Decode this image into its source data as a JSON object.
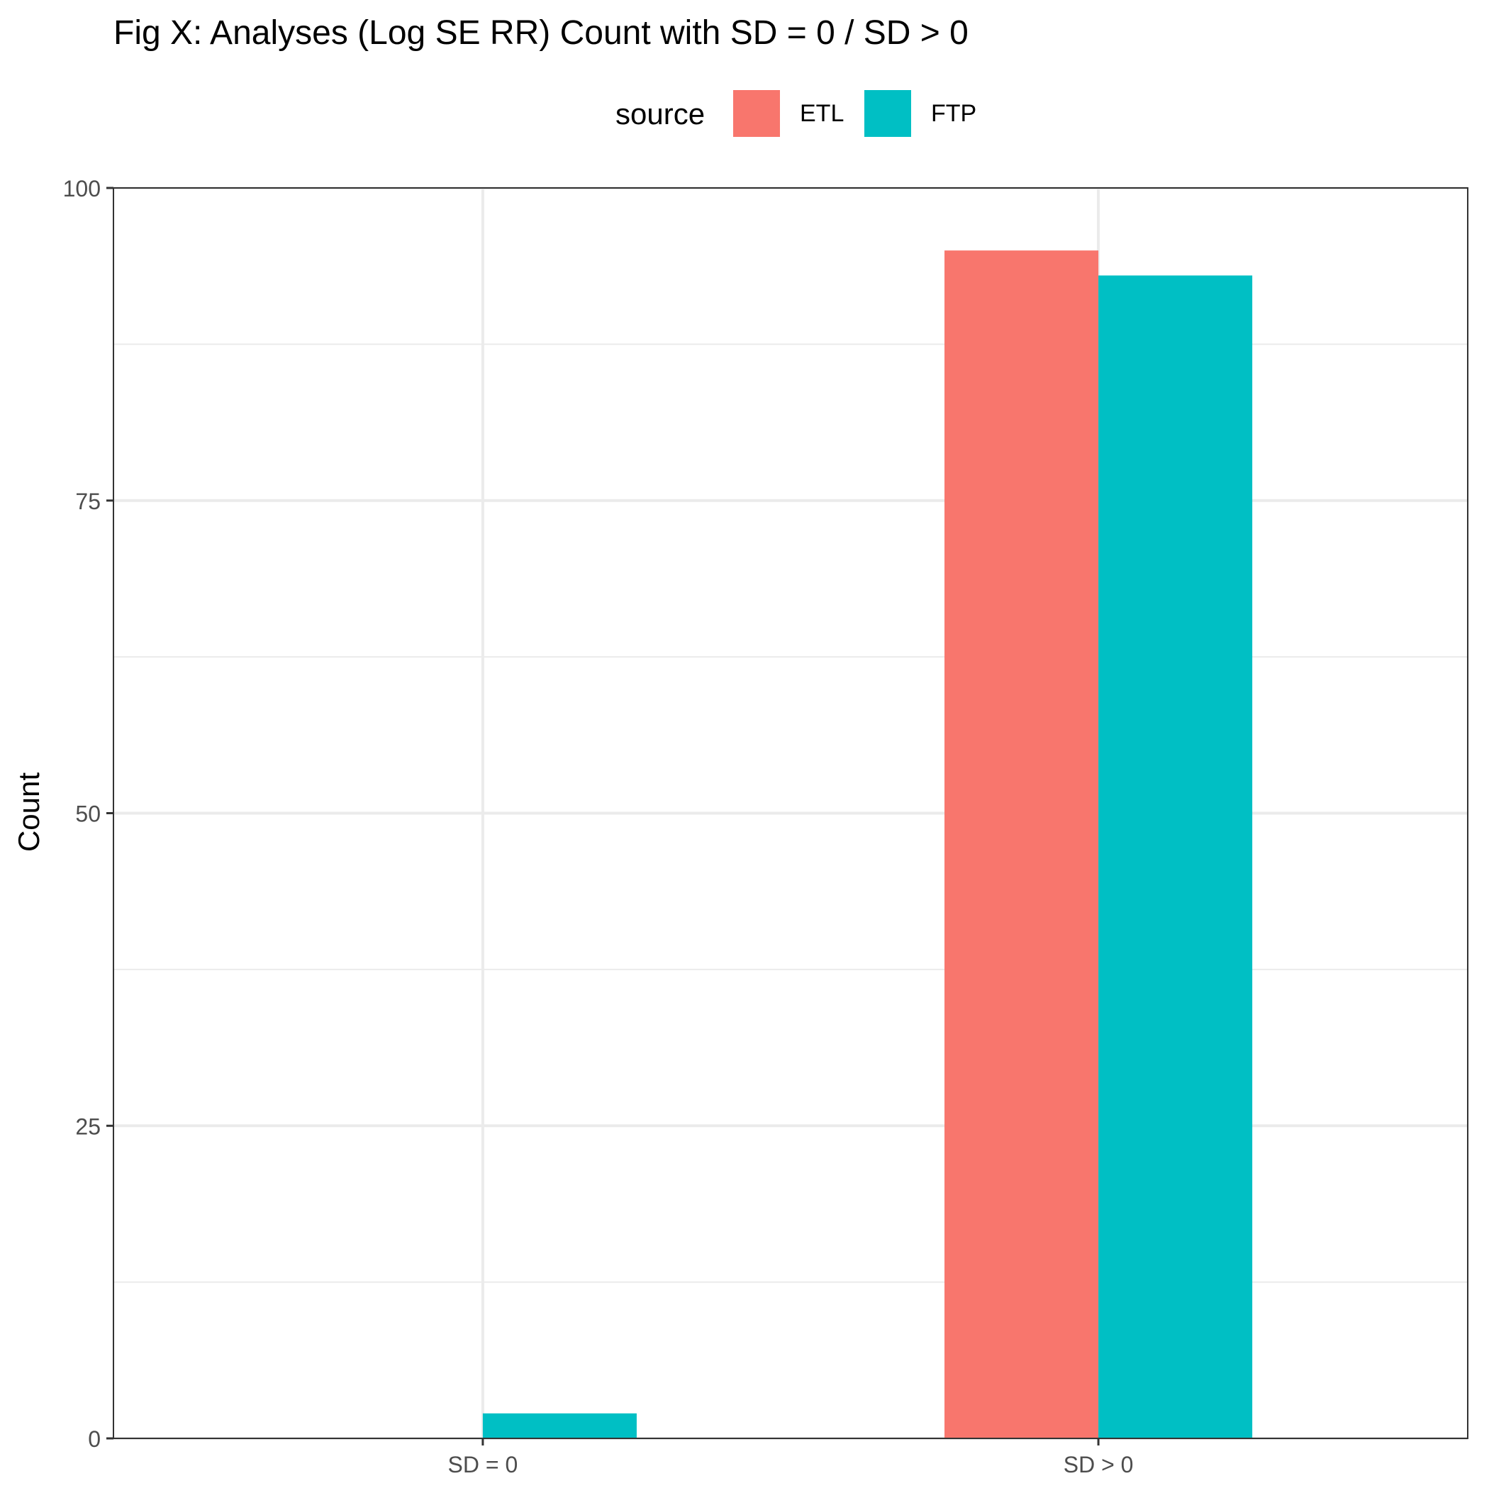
{
  "chart_data": {
    "type": "bar",
    "title": "Fig X: Analyses (Log SE RR) Count with SD = 0 / SD > 0",
    "xlabel": "",
    "ylabel": "Count",
    "categories": [
      "SD = 0",
      "SD > 0"
    ],
    "series": [
      {
        "name": "ETL",
        "color": "#F8766D",
        "values": [
          0,
          95
        ]
      },
      {
        "name": "FTP",
        "color": "#00BFC4",
        "values": [
          2,
          93
        ]
      }
    ],
    "ylim": [
      0,
      100
    ],
    "yticks": [
      0,
      25,
      50,
      75,
      100
    ],
    "ytick_labels": [
      "0",
      "25",
      "50",
      "75",
      "100"
    ],
    "legend": {
      "title": "source",
      "position": "top"
    },
    "grid": true
  }
}
